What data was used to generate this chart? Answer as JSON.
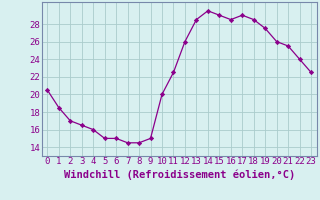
{
  "x": [
    0,
    1,
    2,
    3,
    4,
    5,
    6,
    7,
    8,
    9,
    10,
    11,
    12,
    13,
    14,
    15,
    16,
    17,
    18,
    19,
    20,
    21,
    22,
    23
  ],
  "y": [
    20.5,
    18.5,
    17.0,
    16.5,
    16.0,
    15.0,
    15.0,
    14.5,
    14.5,
    15.0,
    20.0,
    22.5,
    26.0,
    28.5,
    29.5,
    29.0,
    28.5,
    29.0,
    28.5,
    27.5,
    26.0,
    25.5,
    24.0,
    22.5
  ],
  "line_color": "#8B008B",
  "marker": "D",
  "marker_size": 2.2,
  "bg_color": "#d8f0f0",
  "grid_color": "#aacccc",
  "xlabel": "Windchill (Refroidissement éolien,°C)",
  "xlabel_color": "#8B008B",
  "ylabel_ticks": [
    14,
    16,
    18,
    20,
    22,
    24,
    26,
    28
  ],
  "ylim": [
    13.0,
    30.5
  ],
  "xlim": [
    -0.5,
    23.5
  ],
  "tick_color": "#8B008B",
  "tick_fontsize": 6.5,
  "xlabel_fontsize": 7.5,
  "spine_color": "#7788aa"
}
